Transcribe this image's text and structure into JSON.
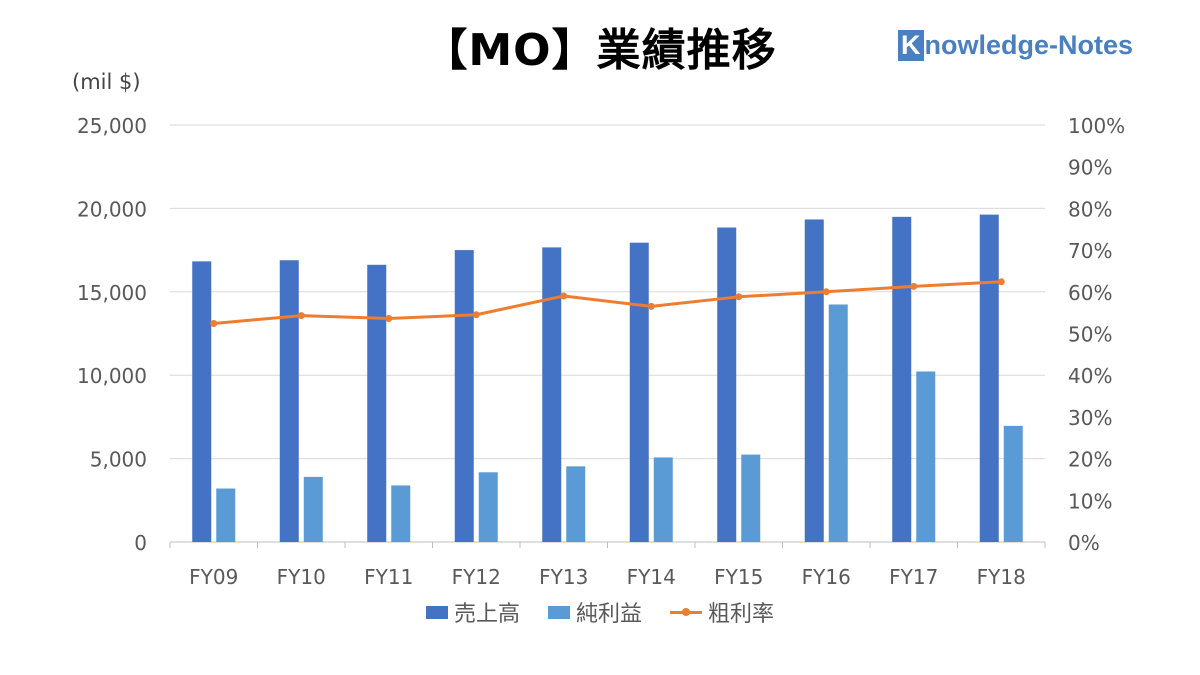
{
  "header": {
    "title": "【MO】業績推移",
    "brand_initial": "K",
    "brand_rest": "nowledge-Notes"
  },
  "chart_data": {
    "type": "bar",
    "unit_label": "(mil $)",
    "categories": [
      "FY09",
      "FY10",
      "FY11",
      "FY12",
      "FY13",
      "FY14",
      "FY15",
      "FY16",
      "FY17",
      "FY18"
    ],
    "series": [
      {
        "name": "売上高",
        "type": "bar",
        "axis": "left",
        "color": "#4472c4",
        "values": [
          16824,
          16892,
          16619,
          17500,
          17663,
          17945,
          18854,
          19337,
          19494,
          19627
        ]
      },
      {
        "name": "純利益",
        "type": "bar",
        "axis": "left",
        "color": "#5b9bd5",
        "values": [
          3206,
          3905,
          3390,
          4180,
          4535,
          5070,
          5241,
          14239,
          10222,
          6963
        ]
      },
      {
        "name": "粗利率",
        "type": "line",
        "axis": "right",
        "color": "#ed7d31",
        "values": [
          0.524,
          0.543,
          0.536,
          0.545,
          0.59,
          0.565,
          0.588,
          0.6,
          0.613,
          0.624
        ]
      }
    ],
    "y_left": {
      "min": 0,
      "max": 25000,
      "ticks": [
        "0",
        "5,000",
        "10,000",
        "15,000",
        "20,000",
        "25,000"
      ]
    },
    "y_right": {
      "min": 0,
      "max": 1,
      "ticks": [
        "0%",
        "10%",
        "20%",
        "30%",
        "40%",
        "50%",
        "60%",
        "70%",
        "80%",
        "90%",
        "100%"
      ]
    },
    "grid": true,
    "legend": "bottom"
  }
}
